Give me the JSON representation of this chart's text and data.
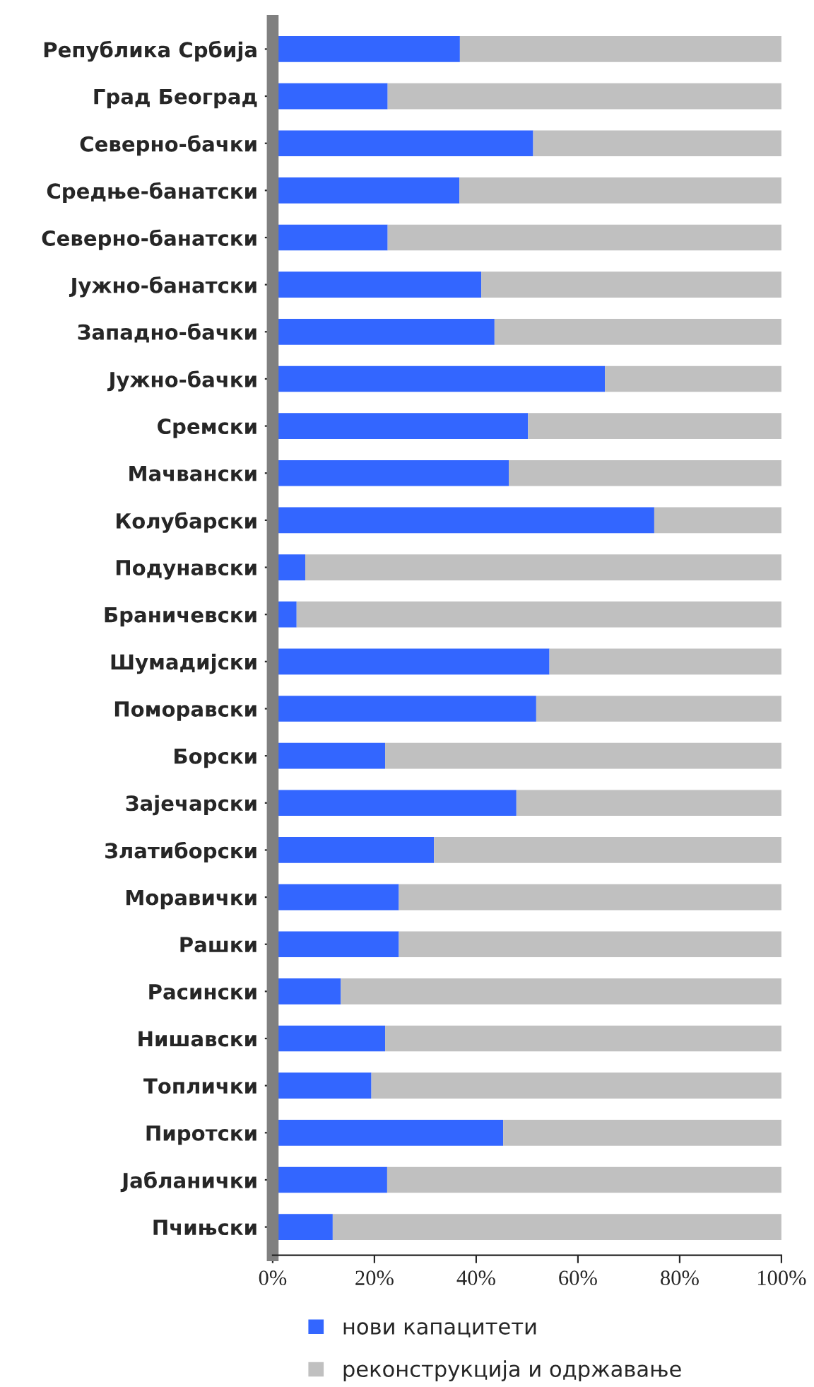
{
  "chart_data": {
    "type": "bar",
    "orientation": "horizontal",
    "stacked": true,
    "categories": [
      "Република Србија",
      "Град Београд",
      "Северно-бачки",
      "Средње-банатски",
      "Северно-банатски",
      "Јужно-банатски",
      "Западно-бачки",
      "Јужно-бачки",
      "Сремски",
      "Мачвански",
      "Колубарски",
      "Подунавски",
      "Браничевски",
      "Шумадијски",
      "Поморавски",
      "Борски",
      "Зајечарски",
      "Златиборски",
      "Моравички",
      "Рашки",
      "Расински",
      "Нишавски",
      "Топлички",
      "Пиротски",
      "Јабланички",
      "Пчињски"
    ],
    "series": [
      {
        "name": "нови капацитети",
        "color": "#3366ff",
        "values": [
          36.8,
          22.6,
          51.2,
          36.7,
          22.6,
          41.0,
          43.6,
          65.3,
          50.2,
          46.4,
          75.0,
          6.4,
          4.7,
          54.4,
          51.8,
          22.1,
          47.9,
          31.7,
          24.8,
          24.8,
          13.4,
          22.1,
          19.4,
          45.3,
          22.5,
          11.8
        ]
      },
      {
        "name": "реконструкција и одржавање",
        "color": "#c0c0c0",
        "values": [
          63.2,
          77.4,
          48.8,
          63.3,
          77.4,
          59.0,
          56.4,
          34.7,
          49.8,
          53.6,
          25.0,
          93.6,
          95.3,
          45.6,
          48.2,
          77.9,
          52.1,
          68.3,
          75.2,
          75.2,
          86.6,
          77.9,
          80.6,
          54.7,
          77.5,
          88.2
        ]
      }
    ],
    "xlim": [
      0,
      100
    ],
    "xticks": [
      {
        "value": 0,
        "label": "0%"
      },
      {
        "value": 20,
        "label": "20%"
      },
      {
        "value": 40,
        "label": "40%"
      },
      {
        "value": 60,
        "label": "60%"
      },
      {
        "value": 80,
        "label": "80%"
      },
      {
        "value": 100,
        "label": "100%"
      }
    ],
    "grid": false,
    "legend": "bottom"
  }
}
